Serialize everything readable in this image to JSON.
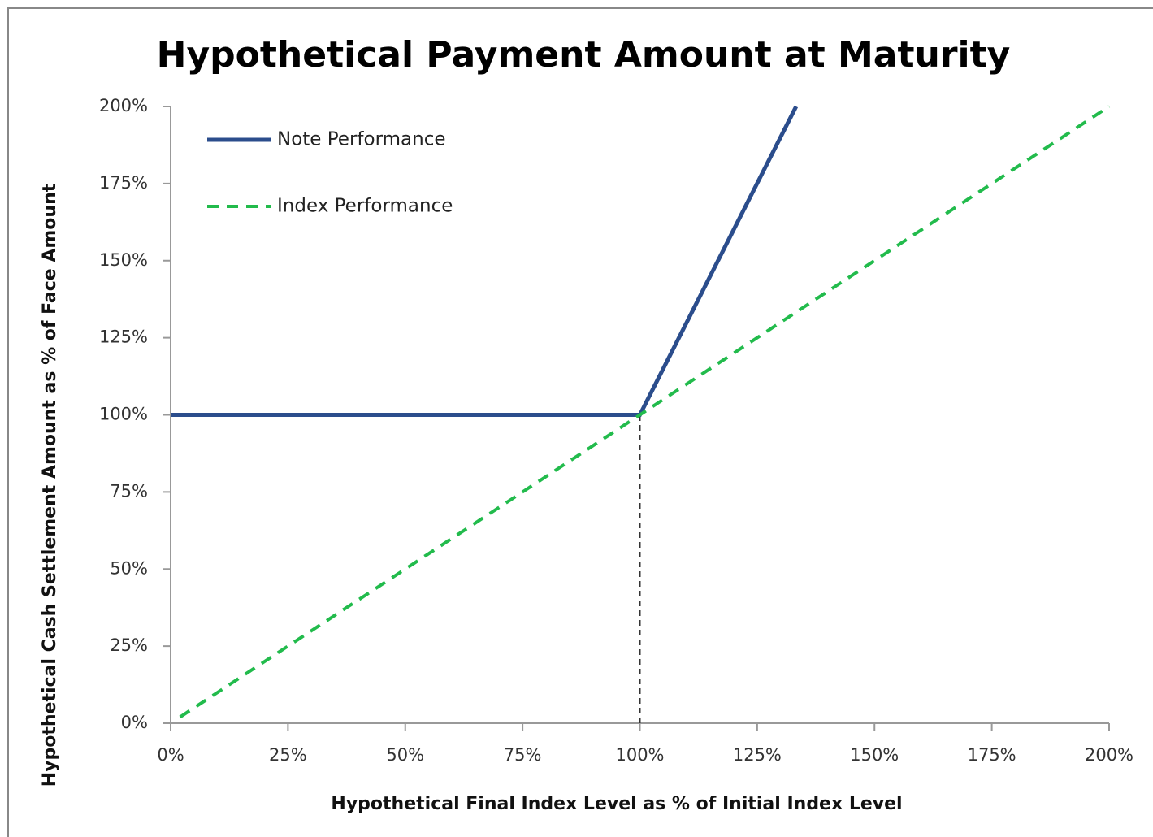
{
  "chart_data": {
    "type": "line",
    "title": "Hypothetical Payment Amount at Maturity",
    "xlabel": "Hypothetical Final Index Level as % of Initial Index Level",
    "ylabel": "Hypothetical Cash Settlement Amount as % of Face Amount",
    "xlim": [
      0,
      200
    ],
    "ylim": [
      0,
      200
    ],
    "xticks": [
      {
        "value": 0,
        "label": "0%"
      },
      {
        "value": 25,
        "label": "25%"
      },
      {
        "value": 50,
        "label": "50%"
      },
      {
        "value": 75,
        "label": "75%"
      },
      {
        "value": 100,
        "label": "100%"
      },
      {
        "value": 125,
        "label": "125%"
      },
      {
        "value": 150,
        "label": "150%"
      },
      {
        "value": 175,
        "label": "175%"
      },
      {
        "value": 200,
        "label": "200%"
      }
    ],
    "yticks": [
      {
        "value": 0,
        "label": "0%"
      },
      {
        "value": 25,
        "label": "25%"
      },
      {
        "value": 50,
        "label": "50%"
      },
      {
        "value": 75,
        "label": "75%"
      },
      {
        "value": 100,
        "label": "100%"
      },
      {
        "value": 125,
        "label": "125%"
      },
      {
        "value": 150,
        "label": "150%"
      },
      {
        "value": 175,
        "label": "175%"
      },
      {
        "value": 200,
        "label": "200%"
      }
    ],
    "legend": "upper left",
    "series": [
      {
        "name": "Note Performance",
        "color": "#2b4d8c",
        "dash": false,
        "x": [
          0,
          100,
          133.3
        ],
        "values": [
          100,
          100,
          200
        ]
      },
      {
        "name": "Index Performance",
        "color": "#22bb4c",
        "dash": true,
        "x": [
          2,
          200
        ],
        "values": [
          2,
          200
        ]
      }
    ],
    "vline": {
      "x": 100,
      "ymax": 100
    }
  }
}
